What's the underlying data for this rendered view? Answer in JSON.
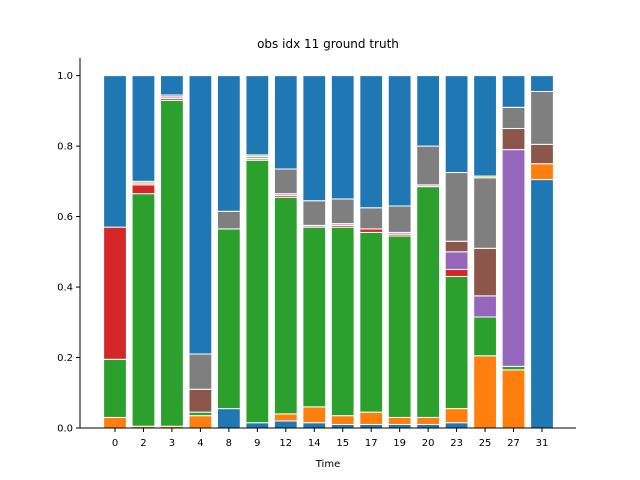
{
  "chart_data": {
    "type": "bar",
    "stacked": true,
    "title": "obs idx 11 ground truth",
    "xlabel": "Time",
    "ylabel": "",
    "ylim": [
      0,
      1.05
    ],
    "yticks": [
      "0.0",
      "0.2",
      "0.4",
      "0.6",
      "0.8",
      "1.0"
    ],
    "ytick_values": [
      0,
      0.2,
      0.4,
      0.6,
      0.8,
      1.0
    ],
    "categories": [
      "0",
      "2",
      "3",
      "4",
      "8",
      "9",
      "12",
      "14",
      "15",
      "17",
      "19",
      "20",
      "23",
      "25",
      "27",
      "31"
    ],
    "grid": false,
    "legend": "none",
    "series": [
      {
        "color": "#1f77b4",
        "values": [
          0.0,
          0.0,
          0.0,
          0.0,
          0.055,
          0.015,
          0.02,
          0.015,
          0.01,
          0.01,
          0.01,
          0.01,
          0.015,
          0.0,
          0.0,
          0.705
        ]
      },
      {
        "color": "#ff7f0e",
        "values": [
          0.03,
          0.005,
          0.005,
          0.035,
          0.0,
          0.0,
          0.02,
          0.045,
          0.025,
          0.035,
          0.02,
          0.02,
          0.04,
          0.205,
          0.165,
          0.045
        ]
      },
      {
        "color": "#2ca02c",
        "values": [
          0.165,
          0.66,
          0.925,
          0.01,
          0.51,
          0.745,
          0.615,
          0.51,
          0.535,
          0.51,
          0.515,
          0.655,
          0.375,
          0.11,
          0.01,
          0.0
        ]
      },
      {
        "color": "#d62728",
        "values": [
          0.375,
          0.025,
          0.005,
          0.0,
          0.0,
          0.0,
          0.005,
          0.0,
          0.005,
          0.01,
          0.005,
          0.0,
          0.02,
          0.0,
          0.0,
          0.0
        ]
      },
      {
        "color": "#9467bd",
        "values": [
          0.0,
          0.0,
          0.0,
          0.0,
          0.0,
          0.0,
          0.0,
          0.0,
          0.0,
          0.0,
          0.0,
          0.0,
          0.05,
          0.06,
          0.615,
          0.0
        ]
      },
      {
        "color": "#8c564b",
        "values": [
          0.0,
          0.0,
          0.0,
          0.065,
          0.0,
          0.0,
          0.0,
          0.0,
          0.0,
          0.0,
          0.0,
          0.0,
          0.03,
          0.135,
          0.06,
          0.055
        ]
      },
      {
        "color": "#e377c2",
        "values": [
          0.0,
          0.005,
          0.005,
          0.0,
          0.0,
          0.005,
          0.005,
          0.005,
          0.005,
          0.0,
          0.005,
          0.005,
          0.0,
          0.0,
          0.0,
          0.0
        ]
      },
      {
        "color": "#7f7f7f",
        "values": [
          0.0,
          0.0,
          0.005,
          0.1,
          0.05,
          0.005,
          0.07,
          0.07,
          0.07,
          0.06,
          0.075,
          0.11,
          0.195,
          0.2,
          0.06,
          0.15
        ]
      },
      {
        "color": "#bcbd22",
        "values": [
          0.0,
          0.005,
          0.0,
          0.0,
          0.0,
          0.005,
          0.0,
          0.0,
          0.0,
          0.0,
          0.0,
          0.0,
          0.0,
          0.005,
          0.0,
          0.0
        ]
      },
      {
        "color": "#1f77b4",
        "values": [
          0.43,
          0.3,
          0.055,
          0.79,
          0.385,
          0.225,
          0.265,
          0.355,
          0.35,
          0.375,
          0.37,
          0.2,
          0.275,
          0.285,
          0.09,
          0.045
        ]
      }
    ]
  }
}
